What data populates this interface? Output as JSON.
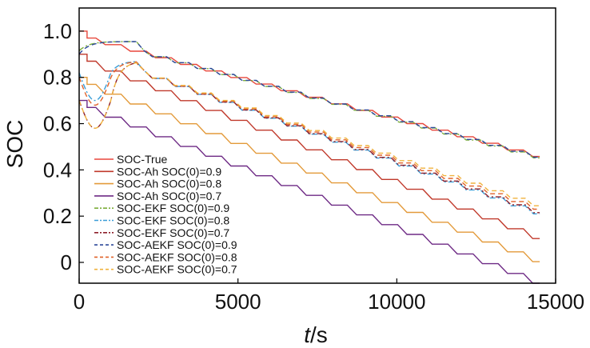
{
  "chart_data": {
    "type": "line",
    "title": "",
    "xlabel_italic": "t",
    "xlabel_unit": "/s",
    "ylabel": "SOC",
    "xlim": [
      0,
      15000
    ],
    "ylim": [
      -0.09,
      1.1
    ],
    "xticks": [
      0,
      5000,
      10000,
      15000
    ],
    "xtick_labels": [
      "0",
      "5000",
      "10000",
      "15000"
    ],
    "yticks": [
      0,
      0.2,
      0.4,
      0.6,
      0.8,
      1.0
    ],
    "ytick_labels": [
      "0",
      "0.2",
      "0.4",
      "0.6",
      "0.8",
      "1.0"
    ],
    "grid": false,
    "legend_position": "lower-left",
    "series": [
      {
        "name": "SOC-True",
        "color": "#e8473b",
        "dash": "solid",
        "x": [
          0,
          14500
        ],
        "values": [
          1.0,
          0.458
        ]
      },
      {
        "name": "SOC-Ah SOC(0)=0.9",
        "color": "#c0392b",
        "dash": "solid",
        "x": [
          0,
          14500
        ],
        "values": [
          0.9,
          0.103
        ]
      },
      {
        "name": "SOC-Ah SOC(0)=0.8",
        "color": "#e39a3a",
        "dash": "solid",
        "x": [
          0,
          14500
        ],
        "values": [
          0.8,
          0.003
        ]
      },
      {
        "name": "SOC-Ah SOC(0)=0.7",
        "color": "#6e2a85",
        "dash": "solid",
        "x": [
          0,
          14500
        ],
        "values": [
          0.7,
          -0.09
        ]
      },
      {
        "name": "SOC-EKF SOC(0)=0.9",
        "color": "#7cae3a",
        "dash": "dashdot",
        "x": [
          0,
          14500
        ],
        "values": [
          0.915,
          0.452
        ]
      },
      {
        "name": "SOC-EKF SOC(0)=0.8",
        "color": "#3a9ed8",
        "dash": "dashdot",
        "x": [
          0,
          14500
        ],
        "values": [
          0.82,
          0.21
        ]
      },
      {
        "name": "SOC-EKF SOC(0)=0.7",
        "color": "#8e1f2a",
        "dash": "dashdot",
        "x": [
          0,
          14500
        ],
        "values": [
          0.7,
          0.215
        ]
      },
      {
        "name": "SOC-AEKF SOC(0)=0.9",
        "color": "#2e4a9b",
        "dash": "dash",
        "x": [
          0,
          14500
        ],
        "values": [
          0.9,
          0.455
        ]
      },
      {
        "name": "SOC-AEKF SOC(0)=0.8",
        "color": "#e0622a",
        "dash": "dash",
        "x": [
          0,
          14500
        ],
        "values": [
          0.8,
          0.23
        ]
      },
      {
        "name": "SOC-AEKF SOC(0)=0.7",
        "color": "#f0b23c",
        "dash": "dash",
        "x": [
          0,
          14500
        ],
        "values": [
          0.7,
          0.245
        ]
      }
    ]
  }
}
